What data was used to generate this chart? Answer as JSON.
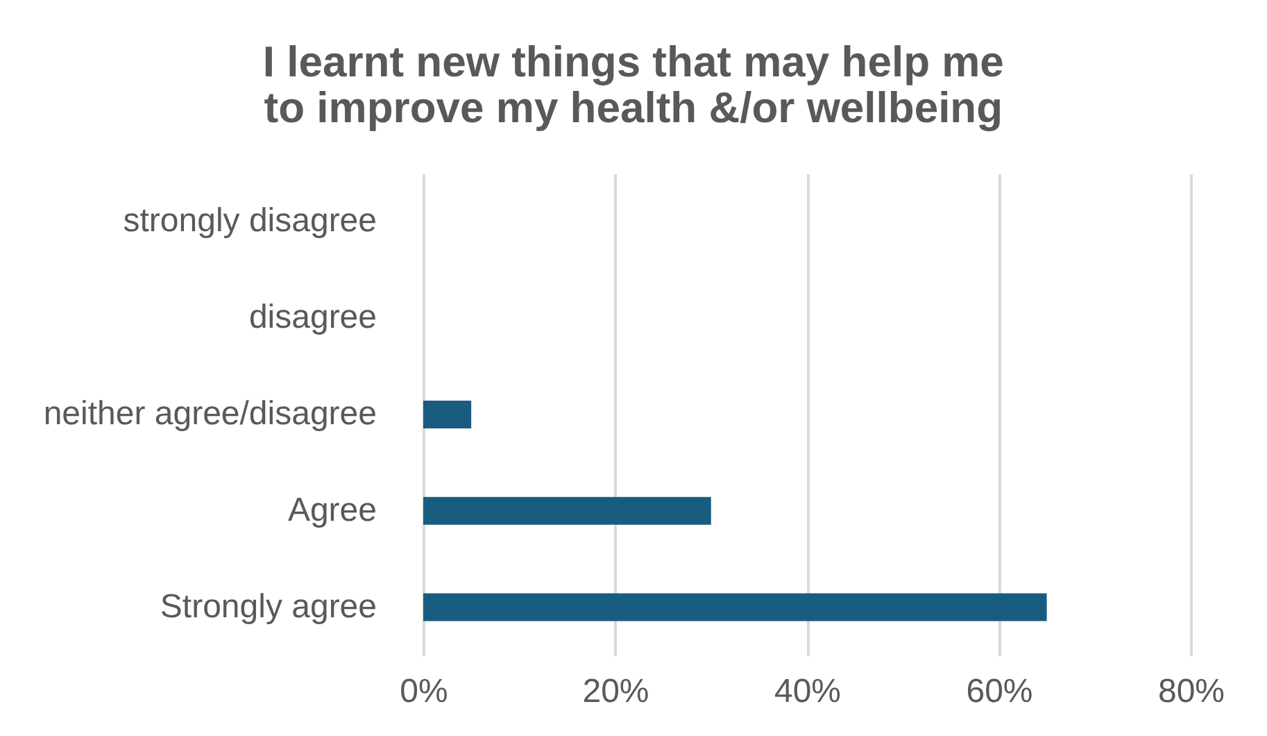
{
  "chart_data": {
    "type": "bar",
    "orientation": "horizontal",
    "title": [
      "I learnt new things that may help me",
      "to improve my health &/or wellbeing"
    ],
    "categories": [
      "strongly disagree",
      "disagree",
      "neither agree/disagree",
      "Agree",
      "Strongly agree"
    ],
    "values": [
      0,
      0,
      5,
      30,
      65
    ],
    "color": "#185d80",
    "xlim": [
      0,
      80
    ],
    "xticks": [
      {
        "value": 0,
        "label": "0%"
      },
      {
        "value": 20,
        "label": "20%"
      },
      {
        "value": 40,
        "label": "40%"
      },
      {
        "value": 60,
        "label": "60%"
      },
      {
        "value": 80,
        "label": "80%"
      }
    ],
    "grid": "x"
  }
}
